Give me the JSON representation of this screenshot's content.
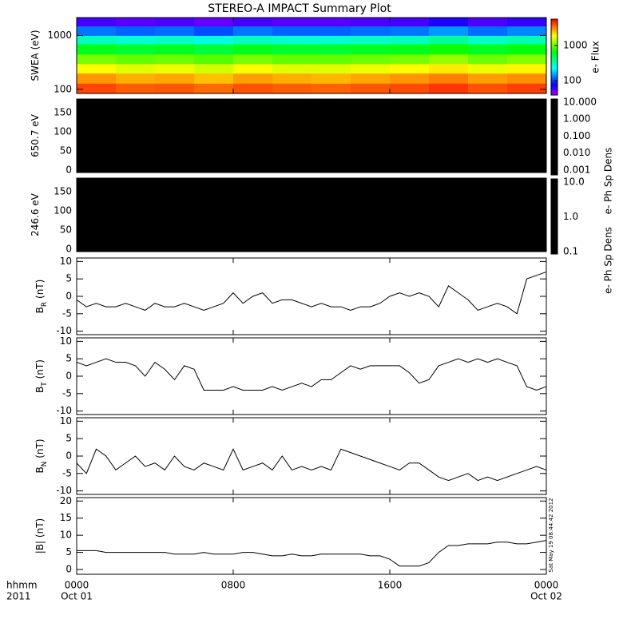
{
  "figure": {
    "title": "STEREO-A IMPACT Summary Plot",
    "xlim": [
      0,
      24
    ],
    "xticks": [
      {
        "value": 0,
        "label": "0000"
      },
      {
        "value": 8,
        "label": "0800"
      },
      {
        "value": 16,
        "label": "1600"
      },
      {
        "value": 24,
        "label": "0000"
      }
    ],
    "xtick_dates": [
      "Oct 01",
      null,
      null,
      "Oct 02"
    ],
    "xlabel_lines": [
      "hhmm",
      "2011"
    ],
    "timestamp": "Sat May 19 08:44:42 2012"
  },
  "chart_data": [
    {
      "type": "heatmap",
      "ylabel": "SWEA (eV)",
      "ylog": true,
      "ylim": [
        84,
        2150
      ],
      "yticks": [
        100,
        1000
      ],
      "x_bins": [
        0,
        2,
        4,
        6,
        8,
        10,
        12,
        14,
        16,
        18,
        20,
        22,
        24
      ],
      "y_bins": [
        84,
        130,
        200,
        300,
        450,
        700,
        1000,
        1500,
        2150
      ],
      "z": [
        [
          4200,
          3800,
          3900,
          3600,
          4000,
          3800,
          3700,
          3900,
          4100,
          4500,
          4000,
          4300
        ],
        [
          3000,
          2700,
          2800,
          2500,
          2900,
          2700,
          2600,
          2800,
          3000,
          3300,
          2900,
          3100
        ],
        [
          1900,
          1700,
          1800,
          1600,
          1900,
          1700,
          1700,
          1800,
          1900,
          2100,
          1800,
          2000
        ],
        [
          1100,
          1000,
          1050,
          950,
          1100,
          1000,
          1000,
          1050,
          1100,
          1250,
          1050,
          1150
        ],
        [
          600,
          550,
          580,
          520,
          600,
          560,
          550,
          580,
          600,
          700,
          580,
          640
        ],
        [
          300,
          280,
          290,
          260,
          300,
          280,
          280,
          290,
          300,
          350,
          290,
          320
        ],
        [
          130,
          120,
          125,
          110,
          130,
          120,
          120,
          125,
          130,
          150,
          125,
          140
        ],
        [
          60,
          55,
          58,
          52,
          60,
          55,
          55,
          58,
          60,
          70,
          58,
          64
        ]
      ],
      "zlog": true,
      "zlim": [
        39,
        5600
      ],
      "colorbar_label": "e- Flux",
      "colorbar_ticks": [
        100,
        1000
      ]
    },
    {
      "type": "heatmap",
      "ylabel": "650.7 eV",
      "ylim": [
        -6,
        185
      ],
      "yticks": [
        0,
        50,
        100,
        150
      ],
      "fill": "#000000",
      "zlog": true,
      "zlim": [
        0.00052,
        15.4
      ],
      "colorbar_label": "e- Ph Sp Dens",
      "colorbar_fill": "#000000",
      "colorbar_ticks": [
        {
          "value": 10,
          "label": "10.000"
        },
        {
          "value": 1,
          "label": "1.000"
        },
        {
          "value": 0.1,
          "label": "0.100"
        },
        {
          "value": 0.01,
          "label": "0.010"
        },
        {
          "value": 0.001,
          "label": "0.001"
        }
      ]
    },
    {
      "type": "heatmap",
      "ylabel": "246.6 eV",
      "ylim": [
        -6,
        185
      ],
      "yticks": [
        0,
        50,
        100,
        150
      ],
      "fill": "#000000",
      "zlog": true,
      "zlim": [
        0.085,
        12.4
      ],
      "colorbar_label": "e- Ph Sp Dens",
      "colorbar_fill": "#000000",
      "colorbar_ticks": [
        {
          "value": 10,
          "label": "10.0"
        },
        {
          "value": 1,
          "label": "1.0"
        },
        {
          "value": 0.1,
          "label": "0.1"
        }
      ]
    },
    {
      "type": "line",
      "ylabel": "B",
      "ylabel_sub": "R",
      "ylabel_unit": "(nT)",
      "ylim": [
        -11,
        11
      ],
      "yticks": [
        -10,
        -5,
        0,
        5,
        10
      ],
      "color": "#000000",
      "x": [
        0,
        0.5,
        1,
        1.5,
        2,
        2.5,
        3,
        3.5,
        4,
        4.5,
        5,
        5.5,
        6,
        6.5,
        7,
        7.5,
        8,
        8.5,
        9,
        9.5,
        10,
        10.5,
        11,
        11.5,
        12,
        12.5,
        13,
        13.5,
        14,
        14.5,
        15,
        15.5,
        16,
        16.5,
        17,
        17.5,
        18,
        18.5,
        19,
        19.5,
        20,
        20.5,
        21,
        21.5,
        22,
        22.5,
        23,
        23.5,
        24
      ],
      "values": [
        -1,
        -3,
        -2,
        -3,
        -3,
        -2,
        -3,
        -4,
        -2,
        -3,
        -3,
        -2,
        -3,
        -4,
        -3,
        -2,
        1,
        -2,
        0,
        1,
        -2,
        -1,
        -1,
        -2,
        -3,
        -2,
        -3,
        -3,
        -4,
        -3,
        -3,
        -2,
        0,
        1,
        0,
        1,
        0,
        -3,
        3,
        1,
        -1,
        -4,
        -3,
        -2,
        -3,
        -5,
        5,
        6,
        7
      ]
    },
    {
      "type": "line",
      "ylabel": "B",
      "ylabel_sub": "T",
      "ylabel_unit": "(nT)",
      "ylim": [
        -11,
        11
      ],
      "yticks": [
        -10,
        -5,
        0,
        5,
        10
      ],
      "color": "#000000",
      "x": [
        0,
        0.5,
        1,
        1.5,
        2,
        2.5,
        3,
        3.5,
        4,
        4.5,
        5,
        5.5,
        6,
        6.5,
        7,
        7.5,
        8,
        8.5,
        9,
        9.5,
        10,
        10.5,
        11,
        11.5,
        12,
        12.5,
        13,
        13.5,
        14,
        14.5,
        15,
        15.5,
        16,
        16.5,
        17,
        17.5,
        18,
        18.5,
        19,
        19.5,
        20,
        20.5,
        21,
        21.5,
        22,
        22.5,
        23,
        23.5,
        24
      ],
      "values": [
        4,
        3,
        4,
        5,
        4,
        4,
        3,
        0,
        4,
        2,
        -1,
        3,
        2,
        -4,
        -4,
        -4,
        -3,
        -4,
        -4,
        -4,
        -3,
        -4,
        -3,
        -2,
        -3,
        -1,
        -1,
        1,
        3,
        2,
        3,
        3,
        3,
        3,
        1,
        -2,
        -1,
        3,
        4,
        5,
        4,
        5,
        4,
        5,
        4,
        3,
        -3,
        -4,
        -3
      ]
    },
    {
      "type": "line",
      "ylabel": "B",
      "ylabel_sub": "N",
      "ylabel_unit": "(nT)",
      "ylim": [
        -11,
        11
      ],
      "yticks": [
        -10,
        -5,
        0,
        5,
        10
      ],
      "color": "#000000",
      "x": [
        0,
        0.5,
        1,
        1.5,
        2,
        2.5,
        3,
        3.5,
        4,
        4.5,
        5,
        5.5,
        6,
        6.5,
        7,
        7.5,
        8,
        8.5,
        9,
        9.5,
        10,
        10.5,
        11,
        11.5,
        12,
        12.5,
        13,
        13.5,
        14,
        14.5,
        15,
        15.5,
        16,
        16.5,
        17,
        17.5,
        18,
        18.5,
        19,
        19.5,
        20,
        20.5,
        21,
        21.5,
        22,
        22.5,
        23,
        23.5,
        24
      ],
      "values": [
        -2,
        -5,
        2,
        0,
        -4,
        -2,
        0,
        -3,
        -2,
        -4,
        0,
        -3,
        -4,
        -2,
        -3,
        -4,
        2,
        -4,
        -3,
        -2,
        -4,
        0,
        -4,
        -3,
        -4,
        -3,
        -4,
        2,
        1,
        0,
        -1,
        -2,
        -3,
        -4,
        -2,
        -2,
        -4,
        -6,
        -7,
        -6,
        -5,
        -7,
        -6,
        -7,
        -6,
        -5,
        -4,
        -3,
        -4
      ]
    },
    {
      "type": "line",
      "ylabel": "|B| (nT)",
      "ylim": [
        -1.4,
        21
      ],
      "yticks": [
        0,
        5,
        10,
        15,
        20
      ],
      "color": "#000000",
      "x": [
        0,
        0.5,
        1,
        1.5,
        2,
        2.5,
        3,
        3.5,
        4,
        4.5,
        5,
        5.5,
        6,
        6.5,
        7,
        7.5,
        8,
        8.5,
        9,
        9.5,
        10,
        10.5,
        11,
        11.5,
        12,
        12.5,
        13,
        13.5,
        14,
        14.5,
        15,
        15.5,
        16,
        16.5,
        17,
        17.5,
        18,
        18.5,
        19,
        19.5,
        20,
        20.5,
        21,
        21.5,
        22,
        22.5,
        23,
        23.5,
        24
      ],
      "values": [
        5.5,
        5.5,
        5.5,
        5,
        5,
        5,
        5,
        5,
        5,
        5,
        4.5,
        4.5,
        4.5,
        5,
        4.5,
        4.5,
        4.5,
        5,
        5,
        4.5,
        4,
        4,
        4.5,
        4,
        4,
        4.5,
        4.5,
        4.5,
        4.5,
        4.5,
        4,
        4,
        3,
        1,
        1,
        1,
        2,
        5,
        7,
        7,
        7.5,
        7.5,
        7.5,
        8,
        8,
        7.5,
        7.5,
        8,
        8.5
      ]
    }
  ]
}
